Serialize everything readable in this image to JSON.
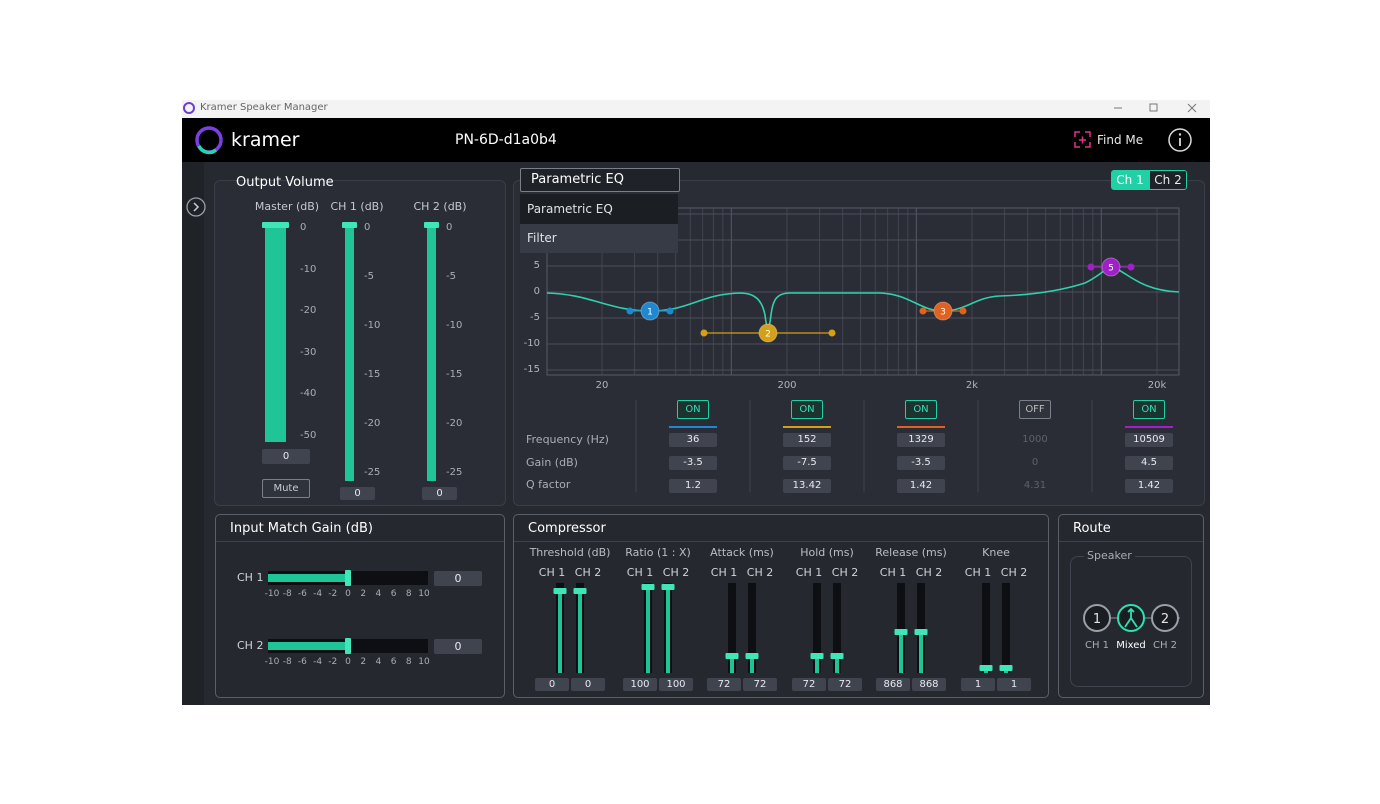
{
  "window": {
    "title": "Kramer Speaker Manager"
  },
  "header": {
    "brand": "kramer",
    "device": "PN-6D-d1a0b4",
    "find_me": "Find Me"
  },
  "output_volume": {
    "title": "Output Volume",
    "mute": "Mute",
    "sliders": [
      {
        "label": "Master (dB)",
        "ticks": [
          "0",
          "-10",
          "-20",
          "-30",
          "-40",
          "-50"
        ],
        "value": "0"
      },
      {
        "label": "CH 1 (dB)",
        "ticks": [
          "0",
          "-5",
          "-10",
          "-15",
          "-20",
          "-25"
        ],
        "value": "0"
      },
      {
        "label": "CH 2 (dB)",
        "ticks": [
          "0",
          "-5",
          "-10",
          "-15",
          "-20",
          "-25"
        ],
        "value": "0"
      }
    ]
  },
  "eq": {
    "mode": "Parametric EQ",
    "options": [
      "Parametric EQ",
      "Filter"
    ],
    "channels": [
      "Ch 1",
      "Ch 2"
    ],
    "y_ticks": [
      "5",
      "0",
      "-5",
      "-10",
      "-15"
    ],
    "x_ticks": [
      "20",
      "200",
      "2k",
      "20k"
    ],
    "row_labels": [
      "Frequency (Hz)",
      "Gain (dB)",
      "Q factor"
    ],
    "bands": [
      {
        "marker": "1",
        "state": "ON",
        "frequency": "36",
        "gain": "-3.5",
        "q": "1.2"
      },
      {
        "marker": "2",
        "state": "ON",
        "frequency": "152",
        "gain": "-7.5",
        "q": "13.42"
      },
      {
        "marker": "3",
        "state": "ON",
        "frequency": "1329",
        "gain": "-3.5",
        "q": "1.42"
      },
      {
        "state": "OFF",
        "frequency": "1000",
        "gain": "0",
        "q": "4.31"
      },
      {
        "marker": "5",
        "state": "ON",
        "frequency": "10509",
        "gain": "4.5",
        "q": "1.42"
      }
    ]
  },
  "input_match_gain": {
    "title": "Input Match Gain (dB)",
    "scale": [
      "-10",
      "-8",
      "-6",
      "-4",
      "-2",
      "0",
      "2",
      "4",
      "6",
      "8",
      "10"
    ],
    "channels": [
      {
        "label": "CH 1",
        "value": "0"
      },
      {
        "label": "CH 2",
        "value": "0"
      }
    ]
  },
  "compressor": {
    "title": "Compressor",
    "params": [
      {
        "label": "Threshold (dB)",
        "channels": [
          "CH 1",
          "CH 2"
        ],
        "values": [
          "0",
          "0"
        ]
      },
      {
        "label": "Ratio (1 : X)",
        "channels": [
          "CH 1",
          "CH 2"
        ],
        "values": [
          "100",
          "100"
        ]
      },
      {
        "label": "Attack (ms)",
        "channels": [
          "CH 1",
          "CH 2"
        ],
        "values": [
          "72",
          "72"
        ]
      },
      {
        "label": "Hold (ms)",
        "channels": [
          "CH 1",
          "CH 2"
        ],
        "values": [
          "72",
          "72"
        ]
      },
      {
        "label": "Release (ms)",
        "channels": [
          "CH 1",
          "CH 2"
        ],
        "values": [
          "868",
          "868"
        ]
      },
      {
        "label": "Knee",
        "channels": [
          "CH 1",
          "CH 2"
        ],
        "values": [
          "1",
          "1"
        ]
      }
    ]
  },
  "route": {
    "title": "Route",
    "group": "Speaker",
    "outputs": [
      {
        "icon": "1",
        "label": "CH 1"
      },
      {
        "label": "Mixed"
      },
      {
        "icon": "2",
        "label": "CH 2"
      }
    ]
  }
}
